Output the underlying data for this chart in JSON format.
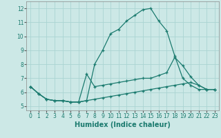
{
  "xlabel": "Humidex (Indice chaleur)",
  "bg_color": "#cce8e6",
  "grid_color": "#aad4d2",
  "line_color": "#1a7a6e",
  "x_ticks": [
    0,
    1,
    2,
    3,
    4,
    5,
    6,
    7,
    8,
    9,
    10,
    11,
    12,
    13,
    14,
    15,
    16,
    17,
    18,
    19,
    20,
    21,
    22,
    23
  ],
  "y_ticks": [
    5,
    6,
    7,
    8,
    9,
    10,
    11,
    12
  ],
  "ylim": [
    4.7,
    12.5
  ],
  "xlim": [
    -0.5,
    23.5
  ],
  "series": [
    {
      "x": [
        0,
        1,
        2,
        3,
        4,
        5,
        6,
        7,
        8,
        9,
        10,
        11,
        12,
        13,
        14,
        15,
        16,
        17,
        18,
        19,
        20,
        21,
        22,
        23
      ],
      "y": [
        6.4,
        5.9,
        5.5,
        5.4,
        5.4,
        5.3,
        5.3,
        5.4,
        8.0,
        9.0,
        10.2,
        10.5,
        11.1,
        11.5,
        11.9,
        12.0,
        11.1,
        10.4,
        8.6,
        7.0,
        6.5,
        6.2,
        6.2,
        6.2
      ]
    },
    {
      "x": [
        0,
        1,
        2,
        3,
        4,
        5,
        6,
        7,
        8,
        9,
        10,
        11,
        12,
        13,
        14,
        15,
        16,
        17,
        18,
        19,
        20,
        21,
        22,
        23
      ],
      "y": [
        6.4,
        5.9,
        5.5,
        5.4,
        5.4,
        5.3,
        5.3,
        7.3,
        6.4,
        6.5,
        6.6,
        6.7,
        6.8,
        6.9,
        7.0,
        7.0,
        7.2,
        7.4,
        8.5,
        7.9,
        7.1,
        6.5,
        6.2,
        6.2
      ]
    },
    {
      "x": [
        0,
        1,
        2,
        3,
        4,
        5,
        6,
        7,
        8,
        9,
        10,
        11,
        12,
        13,
        14,
        15,
        16,
        17,
        18,
        19,
        20,
        21,
        22,
        23
      ],
      "y": [
        6.4,
        5.9,
        5.5,
        5.4,
        5.4,
        5.3,
        5.3,
        5.4,
        5.5,
        5.6,
        5.7,
        5.8,
        5.9,
        6.0,
        6.1,
        6.2,
        6.3,
        6.4,
        6.5,
        6.6,
        6.7,
        6.5,
        6.2,
        6.2
      ]
    }
  ],
  "tick_fontsize": 5.5,
  "xlabel_fontsize": 7.0
}
